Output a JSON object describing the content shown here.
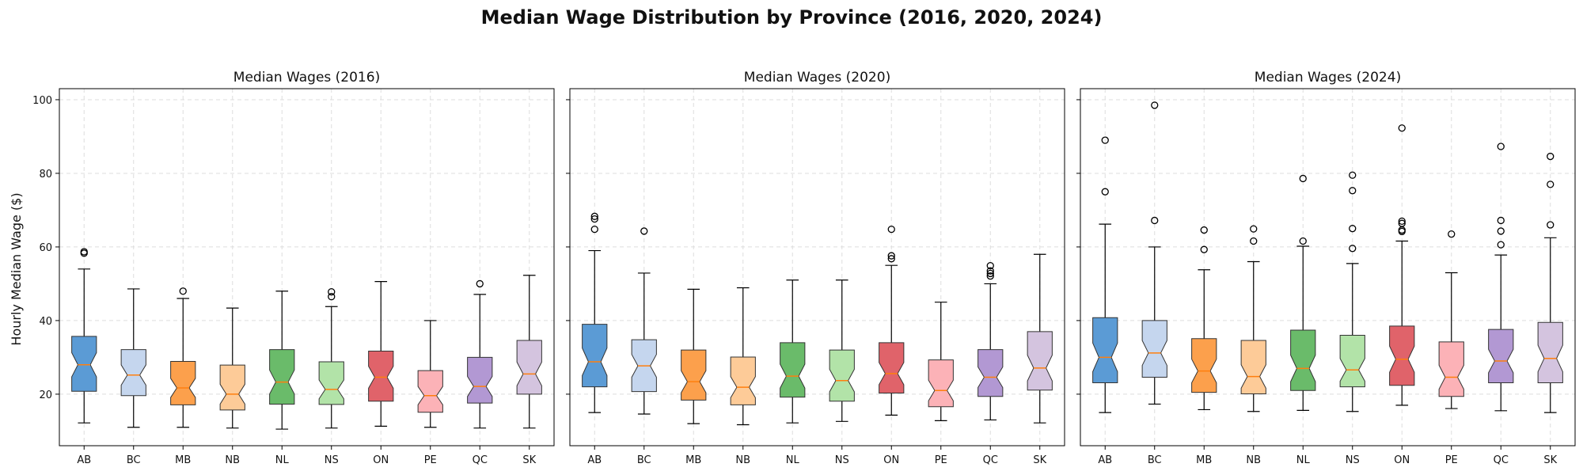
{
  "chart_data": {
    "type": "boxplot",
    "title": "Median Wage Distribution by Province (2016, 2020, 2024)",
    "ylabel": "Hourly Median Wage ($)",
    "ylim": [
      6,
      103
    ],
    "yticks": [
      20,
      40,
      60,
      80,
      100
    ],
    "grid": true,
    "notched": true,
    "colors": [
      "#5b9bd5",
      "#c5d6ee",
      "#fca04c",
      "#fdcb98",
      "#6abb6a",
      "#b2e3a8",
      "#e0636a",
      "#fcb2b7",
      "#b298d3",
      "#d4c4df"
    ],
    "median_color": "#ff7f0e",
    "categories": [
      "AB",
      "BC",
      "MB",
      "NB",
      "NL",
      "NS",
      "ON",
      "PE",
      "QC",
      "SK"
    ],
    "panels": [
      {
        "title": "Median Wages (2016)",
        "boxes": [
          {
            "whislo": 12.2,
            "q1": 20.8,
            "med": 28.0,
            "q3": 35.7,
            "whishi": 54.0,
            "fliers": [
              58.3,
              58.7
            ]
          },
          {
            "whislo": 11.0,
            "q1": 19.6,
            "med": 25.2,
            "q3": 32.1,
            "whishi": 48.6,
            "fliers": []
          },
          {
            "whislo": 11.0,
            "q1": 17.1,
            "med": 21.7,
            "q3": 28.9,
            "whishi": 46.0,
            "fliers": [
              48.0
            ]
          },
          {
            "whislo": 10.8,
            "q1": 15.7,
            "med": 20.0,
            "q3": 27.9,
            "whishi": 43.4,
            "fliers": []
          },
          {
            "whislo": 10.5,
            "q1": 17.3,
            "med": 23.3,
            "q3": 32.1,
            "whishi": 48.0,
            "fliers": []
          },
          {
            "whislo": 10.8,
            "q1": 17.2,
            "med": 21.3,
            "q3": 28.8,
            "whishi": 43.8,
            "fliers": [
              46.5,
              47.8
            ]
          },
          {
            "whislo": 11.3,
            "q1": 18.1,
            "med": 24.6,
            "q3": 31.7,
            "whishi": 50.6,
            "fliers": []
          },
          {
            "whislo": 11.0,
            "q1": 15.1,
            "med": 19.6,
            "q3": 26.4,
            "whishi": 40.0,
            "fliers": []
          },
          {
            "whislo": 10.8,
            "q1": 17.6,
            "med": 22.1,
            "q3": 30.0,
            "whishi": 47.1,
            "fliers": [
              50.0
            ]
          },
          {
            "whislo": 10.8,
            "q1": 20.0,
            "med": 25.5,
            "q3": 34.6,
            "whishi": 52.3,
            "fliers": []
          }
        ]
      },
      {
        "title": "Median Wages (2020)",
        "boxes": [
          {
            "whislo": 15.0,
            "q1": 22.0,
            "med": 28.8,
            "q3": 39.0,
            "whishi": 59.0,
            "fliers": [
              64.8,
              67.6,
              68.3
            ]
          },
          {
            "whislo": 14.6,
            "q1": 20.7,
            "med": 27.7,
            "q3": 34.8,
            "whishi": 52.9,
            "fliers": [
              64.3
            ]
          },
          {
            "whislo": 12.0,
            "q1": 18.4,
            "med": 23.4,
            "q3": 32.0,
            "whishi": 48.5,
            "fliers": []
          },
          {
            "whislo": 11.7,
            "q1": 17.1,
            "med": 21.9,
            "q3": 30.1,
            "whishi": 48.9,
            "fliers": []
          },
          {
            "whislo": 12.2,
            "q1": 19.2,
            "med": 24.9,
            "q3": 34.0,
            "whishi": 51.0,
            "fliers": []
          },
          {
            "whislo": 12.6,
            "q1": 18.1,
            "med": 23.7,
            "q3": 32.0,
            "whishi": 51.0,
            "fliers": []
          },
          {
            "whislo": 14.3,
            "q1": 20.3,
            "med": 25.6,
            "q3": 34.0,
            "whishi": 55.0,
            "fliers": [
              56.8,
              57.6,
              64.8
            ]
          },
          {
            "whislo": 12.8,
            "q1": 16.6,
            "med": 21.0,
            "q3": 29.3,
            "whishi": 45.0,
            "fliers": []
          },
          {
            "whislo": 13.0,
            "q1": 19.4,
            "med": 24.6,
            "q3": 32.1,
            "whishi": 50.0,
            "fliers": [
              52.1,
              52.8,
              53.5,
              54.9
            ]
          },
          {
            "whislo": 12.2,
            "q1": 21.1,
            "med": 27.1,
            "q3": 37.0,
            "whishi": 58.0,
            "fliers": []
          }
        ]
      },
      {
        "title": "Median Wages (2024)",
        "boxes": [
          {
            "whislo": 15.0,
            "q1": 23.1,
            "med": 30.0,
            "q3": 40.8,
            "whishi": 66.2,
            "fliers": [
              75.0,
              89.0
            ]
          },
          {
            "whislo": 17.3,
            "q1": 24.6,
            "med": 31.2,
            "q3": 40.0,
            "whishi": 60.0,
            "fliers": [
              67.2,
              98.5
            ]
          },
          {
            "whislo": 15.8,
            "q1": 20.5,
            "med": 26.3,
            "q3": 35.1,
            "whishi": 53.8,
            "fliers": [
              59.3,
              64.6
            ]
          },
          {
            "whislo": 15.3,
            "q1": 20.1,
            "med": 24.8,
            "q3": 34.6,
            "whishi": 56.0,
            "fliers": [
              61.6,
              64.9
            ]
          },
          {
            "whislo": 15.6,
            "q1": 21.0,
            "med": 27.0,
            "q3": 37.4,
            "whishi": 60.2,
            "fliers": [
              61.6,
              78.6
            ]
          },
          {
            "whislo": 15.3,
            "q1": 22.0,
            "med": 26.6,
            "q3": 36.0,
            "whishi": 55.5,
            "fliers": [
              59.6,
              65.0,
              75.3,
              79.5
            ]
          },
          {
            "whislo": 17.0,
            "q1": 22.4,
            "med": 29.5,
            "q3": 38.5,
            "whishi": 61.6,
            "fliers": [
              64.2,
              64.6,
              66.4,
              67.0,
              92.3
            ]
          },
          {
            "whislo": 16.1,
            "q1": 19.4,
            "med": 24.6,
            "q3": 34.2,
            "whishi": 53.0,
            "fliers": [
              63.5
            ]
          },
          {
            "whislo": 15.5,
            "q1": 23.1,
            "med": 29.0,
            "q3": 37.6,
            "whishi": 57.8,
            "fliers": [
              60.6,
              64.3,
              67.2,
              87.3
            ]
          },
          {
            "whislo": 15.0,
            "q1": 23.1,
            "med": 29.7,
            "q3": 39.5,
            "whishi": 62.5,
            "fliers": [
              66.0,
              77.0,
              84.6
            ]
          }
        ]
      }
    ]
  }
}
